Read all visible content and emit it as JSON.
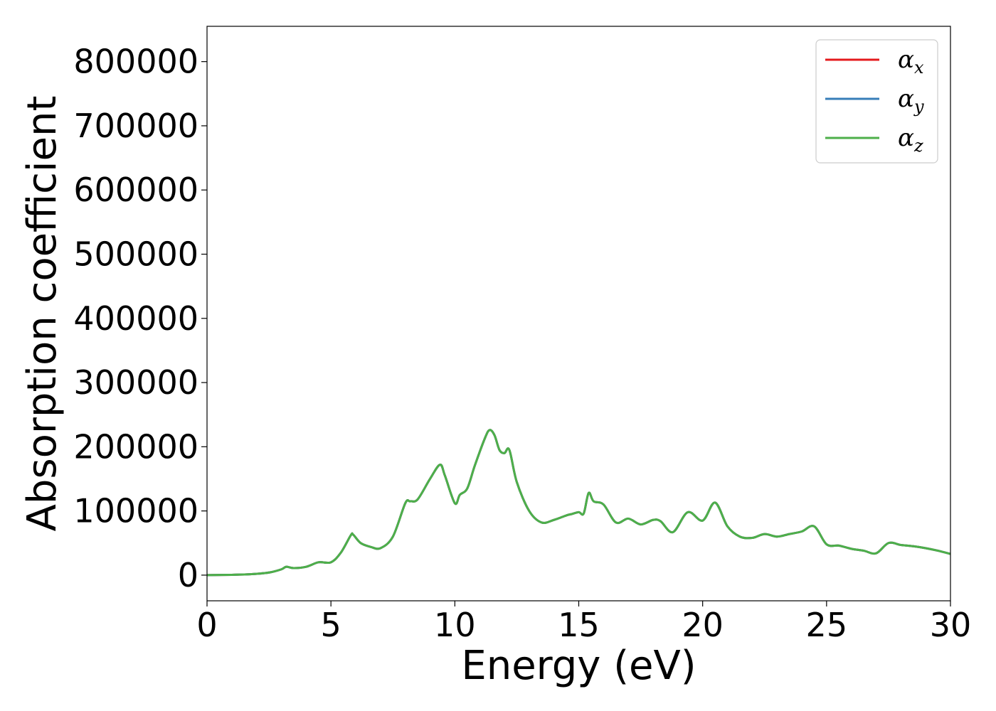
{
  "chart_data": {
    "type": "line",
    "title": "",
    "xlabel": "Energy (eV)",
    "ylabel": "Absorption coefficient",
    "xlim": [
      0,
      30
    ],
    "ylim": [
      -40000,
      855000
    ],
    "xticks": [
      "0",
      "5",
      "10",
      "15",
      "20",
      "25",
      "30"
    ],
    "yticks": [
      "0",
      "100000",
      "200000",
      "300000",
      "400000",
      "500000",
      "600000",
      "700000",
      "800000"
    ],
    "grid": false,
    "legend_position": "top-right",
    "x": [
      0,
      1,
      1.8,
      2.5,
      3.0,
      3.2,
      3.5,
      4.0,
      4.5,
      5.0,
      5.4,
      5.8,
      5.9,
      6.2,
      6.6,
      7.0,
      7.5,
      8.0,
      8.2,
      8.5,
      9.0,
      9.4,
      9.6,
      10.0,
      10.2,
      10.5,
      10.8,
      11.2,
      11.4,
      11.6,
      11.8,
      12.0,
      12.2,
      12.5,
      13.0,
      13.5,
      14.0,
      14.5,
      14.7,
      15.0,
      15.2,
      15.4,
      15.6,
      16.0,
      16.5,
      17.0,
      17.5,
      18.0,
      18.3,
      18.8,
      19.4,
      20.0,
      20.5,
      21.0,
      21.5,
      22.0,
      22.5,
      23.0,
      23.5,
      24.0,
      24.5,
      25.0,
      25.5,
      26.0,
      26.5,
      27.0,
      27.5,
      28.0,
      28.5,
      29.0,
      29.5,
      30.0
    ],
    "series": [
      {
        "name": "α",
        "subscript": "x",
        "color": "#e41a1c",
        "values": [
          0,
          500,
          1500,
          4000,
          9000,
          13000,
          11000,
          13000,
          20000,
          20000,
          35000,
          62000,
          63000,
          50000,
          44000,
          42000,
          60000,
          112000,
          115000,
          118000,
          150000,
          172000,
          155000,
          112000,
          125000,
          135000,
          170000,
          212000,
          226000,
          218000,
          195000,
          190000,
          195000,
          145000,
          100000,
          82000,
          86000,
          93000,
          95000,
          98000,
          96000,
          128000,
          115000,
          110000,
          82000,
          88000,
          79000,
          86000,
          84000,
          67000,
          98000,
          85000,
          113000,
          76000,
          60000,
          58000,
          64000,
          60000,
          64000,
          68000,
          76000,
          48000,
          46000,
          41000,
          38000,
          34000,
          50000,
          47000,
          45000,
          42000,
          38000,
          33000
        ]
      },
      {
        "name": "α",
        "subscript": "y",
        "color": "#377eb8",
        "values": [
          0,
          500,
          1500,
          4000,
          9000,
          13000,
          11000,
          13000,
          20000,
          20000,
          35000,
          62000,
          63000,
          50000,
          44000,
          42000,
          60000,
          112000,
          115000,
          118000,
          150000,
          172000,
          155000,
          112000,
          125000,
          135000,
          170000,
          212000,
          226000,
          218000,
          195000,
          190000,
          195000,
          145000,
          100000,
          82000,
          86000,
          93000,
          95000,
          98000,
          96000,
          128000,
          115000,
          110000,
          82000,
          88000,
          79000,
          86000,
          84000,
          67000,
          98000,
          85000,
          113000,
          76000,
          60000,
          58000,
          64000,
          60000,
          64000,
          68000,
          76000,
          48000,
          46000,
          41000,
          38000,
          34000,
          50000,
          47000,
          45000,
          42000,
          38000,
          33000
        ]
      },
      {
        "name": "α",
        "subscript": "z",
        "color": "#4daf4a",
        "values": [
          0,
          500,
          1500,
          4000,
          9000,
          13000,
          11000,
          13000,
          20000,
          20000,
          35000,
          62000,
          63000,
          50000,
          44000,
          42000,
          60000,
          112000,
          115000,
          118000,
          150000,
          172000,
          155000,
          112000,
          125000,
          135000,
          170000,
          212000,
          226000,
          218000,
          195000,
          190000,
          195000,
          145000,
          100000,
          82000,
          86000,
          93000,
          95000,
          98000,
          96000,
          128000,
          115000,
          110000,
          82000,
          88000,
          79000,
          86000,
          84000,
          67000,
          98000,
          85000,
          113000,
          76000,
          60000,
          58000,
          64000,
          60000,
          64000,
          68000,
          76000,
          48000,
          46000,
          41000,
          38000,
          34000,
          50000,
          47000,
          45000,
          42000,
          38000,
          33000
        ]
      }
    ]
  }
}
